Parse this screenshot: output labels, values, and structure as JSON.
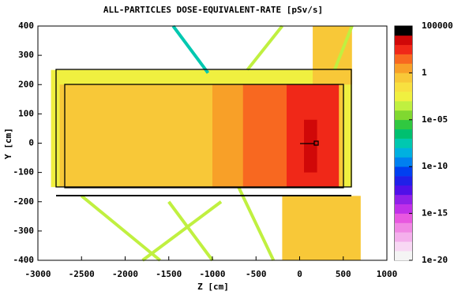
{
  "chart_data": {
    "type": "heatmap",
    "title": "ALL-PARTICLES DOSE-EQUIVALENT-RATE [pSv/s]",
    "xlabel": "Z [cm]",
    "ylabel": "Y [cm]",
    "xlim": [
      -3000,
      1000
    ],
    "xticks": [
      -3000,
      -2500,
      -2000,
      -1500,
      -1000,
      -500,
      0,
      500,
      1000
    ],
    "ylim": [
      -400,
      400
    ],
    "yticks": [
      -400,
      -300,
      -200,
      -100,
      0,
      100,
      200,
      300,
      400
    ],
    "zlim": [
      1e-20,
      100000
    ],
    "zscale": "log",
    "zticks": [
      100000,
      1,
      {
        "value": 1e-05,
        "label": "1e-05"
      },
      {
        "value": 1e-10,
        "label": "1e-10"
      },
      {
        "value": 1e-15,
        "label": "1e-15"
      },
      {
        "value": 1e-20,
        "label": "1e-20"
      }
    ],
    "colors": [
      "#f4f4f4",
      "#f8d8f4",
      "#f4b0ec",
      "#f088e4",
      "#e858e0",
      "#c030e8",
      "#9020e8",
      "#5010e8",
      "#2020e8",
      "#0040f0",
      "#0080f0",
      "#00b0e0",
      "#00c8b0",
      "#00c070",
      "#30c840",
      "#80d830",
      "#c0f040",
      "#f0f040",
      "#f8e040",
      "#f8c838",
      "#f8a028",
      "#f86820",
      "#f02818",
      "#d00808",
      "#000000"
    ],
    "regions": [
      {
        "z": [
          -2850,
          600
        ],
        "y": [
          -150,
          250
        ],
        "value": 0.001
      },
      {
        "z": [
          -2750,
          500
        ],
        "y": [
          -150,
          200
        ],
        "value": 0.3
      },
      {
        "z": [
          -1000,
          -650
        ],
        "y": [
          -150,
          200
        ],
        "value": 1
      },
      {
        "z": [
          -650,
          -150
        ],
        "y": [
          -150,
          200
        ],
        "value": 20
      },
      {
        "z": [
          -150,
          450
        ],
        "y": [
          -150,
          200
        ],
        "value": 200
      },
      {
        "z": [
          50,
          200
        ],
        "y": [
          -100,
          80
        ],
        "value": 3000
      },
      {
        "z": [
          150,
          600
        ],
        "y": [
          200,
          400
        ],
        "value": 0.1
      },
      {
        "z": [
          -200,
          700
        ],
        "y": [
          -400,
          -180
        ],
        "value": 0.1
      }
    ],
    "tracks": [
      {
        "z": [
          -1450,
          -1050
        ],
        "y": [
          400,
          240
        ],
        "value": 1e-08
      },
      {
        "z": [
          -2500,
          -1600
        ],
        "y": [
          -180,
          -400
        ],
        "value": 0.0001
      },
      {
        "z": [
          -1800,
          -900
        ],
        "y": [
          -400,
          -200
        ],
        "value": 0.0001
      },
      {
        "z": [
          -1500,
          -1000
        ],
        "y": [
          -200,
          -400
        ],
        "value": 0.0001
      },
      {
        "z": [
          -700,
          -300
        ],
        "y": [
          -150,
          -400
        ],
        "value": 0.0001
      },
      {
        "z": [
          -600,
          -200
        ],
        "y": [
          250,
          400
        ],
        "value": 0.0001
      },
      {
        "z": [
          400,
          600
        ],
        "y": [
          250,
          400
        ],
        "value": 0.0001
      }
    ]
  }
}
